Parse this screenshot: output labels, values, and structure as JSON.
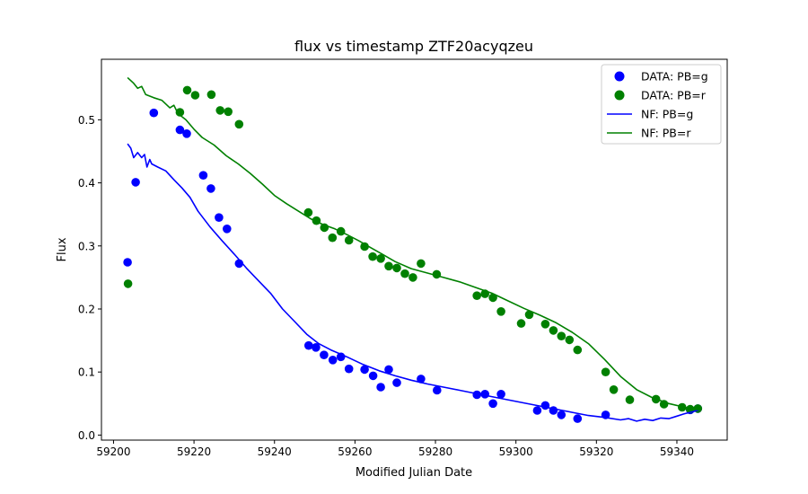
{
  "chart_data": {
    "type": "scatter",
    "title": "flux vs timestamp ZTF20acyqzeu",
    "xlabel": "Modified Julian Date",
    "ylabel": "Flux",
    "xlim": [
      59197.0,
      59352.5
    ],
    "ylim": [
      -0.008,
      0.596
    ],
    "xticks": [
      59200,
      59220,
      59240,
      59260,
      59280,
      59300,
      59320,
      59340
    ],
    "yticks": [
      0.0,
      0.1,
      0.2,
      0.3,
      0.4,
      0.5
    ],
    "grid": false,
    "legend_position": "top-right",
    "scatter_series": [
      {
        "name": "DATA: PB=g",
        "color": "#0000ff",
        "points": [
          [
            59203.5,
            0.274
          ],
          [
            59205.5,
            0.401
          ],
          [
            59210,
            0.511
          ],
          [
            59216.5,
            0.484
          ],
          [
            59218.2,
            0.478
          ],
          [
            59222.3,
            0.412
          ],
          [
            59224.2,
            0.391
          ],
          [
            59226.2,
            0.345
          ],
          [
            59228.2,
            0.327
          ],
          [
            59231.2,
            0.272
          ],
          [
            59248.5,
            0.142
          ],
          [
            59250.3,
            0.139
          ],
          [
            59252.3,
            0.127
          ],
          [
            59254.5,
            0.119
          ],
          [
            59256.5,
            0.124
          ],
          [
            59258.5,
            0.105
          ],
          [
            59262.4,
            0.104
          ],
          [
            59264.5,
            0.094
          ],
          [
            59266.4,
            0.076
          ],
          [
            59268.4,
            0.104
          ],
          [
            59270.4,
            0.083
          ],
          [
            59276.4,
            0.089
          ],
          [
            59280.4,
            0.071
          ],
          [
            59290.3,
            0.064
          ],
          [
            59292.3,
            0.065
          ],
          [
            59294.3,
            0.05
          ],
          [
            59296.3,
            0.065
          ],
          [
            59305.3,
            0.039
          ],
          [
            59307.3,
            0.047
          ],
          [
            59309.3,
            0.039
          ],
          [
            59311.3,
            0.032
          ],
          [
            59315.3,
            0.026
          ],
          [
            59322.3,
            0.032
          ],
          [
            59343.3,
            0.04
          ],
          [
            59345.2,
            0.042
          ]
        ]
      },
      {
        "name": "DATA: PB=r",
        "color": "#008000",
        "points": [
          [
            59203.6,
            0.24
          ],
          [
            59216.5,
            0.512
          ],
          [
            59218.3,
            0.547
          ],
          [
            59220.3,
            0.539
          ],
          [
            59224.3,
            0.54
          ],
          [
            59226.5,
            0.515
          ],
          [
            59228.5,
            0.513
          ],
          [
            59231.2,
            0.493
          ],
          [
            59248.4,
            0.353
          ],
          [
            59250.4,
            0.34
          ],
          [
            59252.4,
            0.329
          ],
          [
            59254.4,
            0.313
          ],
          [
            59256.5,
            0.323
          ],
          [
            59258.5,
            0.309
          ],
          [
            59262.4,
            0.299
          ],
          [
            59264.4,
            0.283
          ],
          [
            59266.4,
            0.28
          ],
          [
            59268.4,
            0.268
          ],
          [
            59270.4,
            0.265
          ],
          [
            59272.4,
            0.256
          ],
          [
            59274.4,
            0.25
          ],
          [
            59276.4,
            0.272
          ],
          [
            59280.3,
            0.255
          ],
          [
            59290.3,
            0.221
          ],
          [
            59292.3,
            0.224
          ],
          [
            59294.3,
            0.218
          ],
          [
            59296.3,
            0.196
          ],
          [
            59301.3,
            0.177
          ],
          [
            59303.3,
            0.191
          ],
          [
            59307.3,
            0.176
          ],
          [
            59309.3,
            0.166
          ],
          [
            59311.3,
            0.157
          ],
          [
            59313.3,
            0.151
          ],
          [
            59315.3,
            0.135
          ],
          [
            59322.3,
            0.1
          ],
          [
            59324.3,
            0.072
          ],
          [
            59328.3,
            0.056
          ],
          [
            59334.8,
            0.057
          ],
          [
            59336.8,
            0.049
          ],
          [
            59341.3,
            0.044
          ],
          [
            59343.3,
            0.041
          ],
          [
            59345.2,
            0.042
          ]
        ]
      }
    ],
    "line_series": [
      {
        "name": "NF: PB=g",
        "color": "#0000ff",
        "points": [
          [
            59203.5,
            0.462
          ],
          [
            59204.3,
            0.455
          ],
          [
            59205,
            0.44
          ],
          [
            59206,
            0.448
          ],
          [
            59207,
            0.44
          ],
          [
            59207.7,
            0.445
          ],
          [
            59208.3,
            0.425
          ],
          [
            59209,
            0.437
          ],
          [
            59209.5,
            0.43
          ],
          [
            59211,
            0.425
          ],
          [
            59213,
            0.419
          ],
          [
            59215,
            0.405
          ],
          [
            59217,
            0.392
          ],
          [
            59219,
            0.377
          ],
          [
            59221,
            0.355
          ],
          [
            59224,
            0.33
          ],
          [
            59227,
            0.308
          ],
          [
            59230,
            0.287
          ],
          [
            59233,
            0.265
          ],
          [
            59236,
            0.245
          ],
          [
            59239,
            0.225
          ],
          [
            59242,
            0.2
          ],
          [
            59245,
            0.18
          ],
          [
            59248,
            0.16
          ],
          [
            59251,
            0.145
          ],
          [
            59254,
            0.135
          ],
          [
            59258,
            0.124
          ],
          [
            59262,
            0.112
          ],
          [
            59266,
            0.102
          ],
          [
            59270,
            0.094
          ],
          [
            59274,
            0.087
          ],
          [
            59278,
            0.081
          ],
          [
            59282,
            0.076
          ],
          [
            59286,
            0.071
          ],
          [
            59290,
            0.066
          ],
          [
            59294,
            0.061
          ],
          [
            59298,
            0.056
          ],
          [
            59302,
            0.051
          ],
          [
            59306,
            0.046
          ],
          [
            59310,
            0.041
          ],
          [
            59314,
            0.036
          ],
          [
            59318,
            0.031
          ],
          [
            59322,
            0.028
          ],
          [
            59326,
            0.024
          ],
          [
            59328,
            0.026
          ],
          [
            59330,
            0.022
          ],
          [
            59332,
            0.025
          ],
          [
            59334,
            0.023
          ],
          [
            59336,
            0.027
          ],
          [
            59338,
            0.026
          ],
          [
            59340,
            0.03
          ],
          [
            59342,
            0.034
          ],
          [
            59344,
            0.037
          ],
          [
            59345.5,
            0.04
          ]
        ]
      },
      {
        "name": "NF: PB=r",
        "color": "#008000",
        "points": [
          [
            59203.5,
            0.567
          ],
          [
            59205,
            0.558
          ],
          [
            59206,
            0.55
          ],
          [
            59207,
            0.553
          ],
          [
            59208,
            0.54
          ],
          [
            59210,
            0.535
          ],
          [
            59212,
            0.531
          ],
          [
            59214,
            0.519
          ],
          [
            59215,
            0.523
          ],
          [
            59216,
            0.51
          ],
          [
            59218,
            0.5
          ],
          [
            59220,
            0.485
          ],
          [
            59222,
            0.472
          ],
          [
            59225,
            0.46
          ],
          [
            59228,
            0.443
          ],
          [
            59231,
            0.43
          ],
          [
            59234,
            0.415
          ],
          [
            59237,
            0.398
          ],
          [
            59240,
            0.38
          ],
          [
            59243,
            0.367
          ],
          [
            59246,
            0.355
          ],
          [
            59249,
            0.343
          ],
          [
            59252,
            0.334
          ],
          [
            59255,
            0.327
          ],
          [
            59258,
            0.318
          ],
          [
            59261,
            0.308
          ],
          [
            59264,
            0.297
          ],
          [
            59267,
            0.286
          ],
          [
            59270,
            0.275
          ],
          [
            59274,
            0.264
          ],
          [
            59278,
            0.257
          ],
          [
            59282,
            0.25
          ],
          [
            59286,
            0.243
          ],
          [
            59290,
            0.234
          ],
          [
            59294,
            0.225
          ],
          [
            59298,
            0.213
          ],
          [
            59302,
            0.201
          ],
          [
            59306,
            0.19
          ],
          [
            59310,
            0.178
          ],
          [
            59314,
            0.163
          ],
          [
            59318,
            0.145
          ],
          [
            59322,
            0.12
          ],
          [
            59326,
            0.093
          ],
          [
            59330,
            0.072
          ],
          [
            59334,
            0.059
          ],
          [
            59338,
            0.05
          ],
          [
            59342,
            0.044
          ],
          [
            59345.5,
            0.04
          ]
        ]
      }
    ]
  }
}
